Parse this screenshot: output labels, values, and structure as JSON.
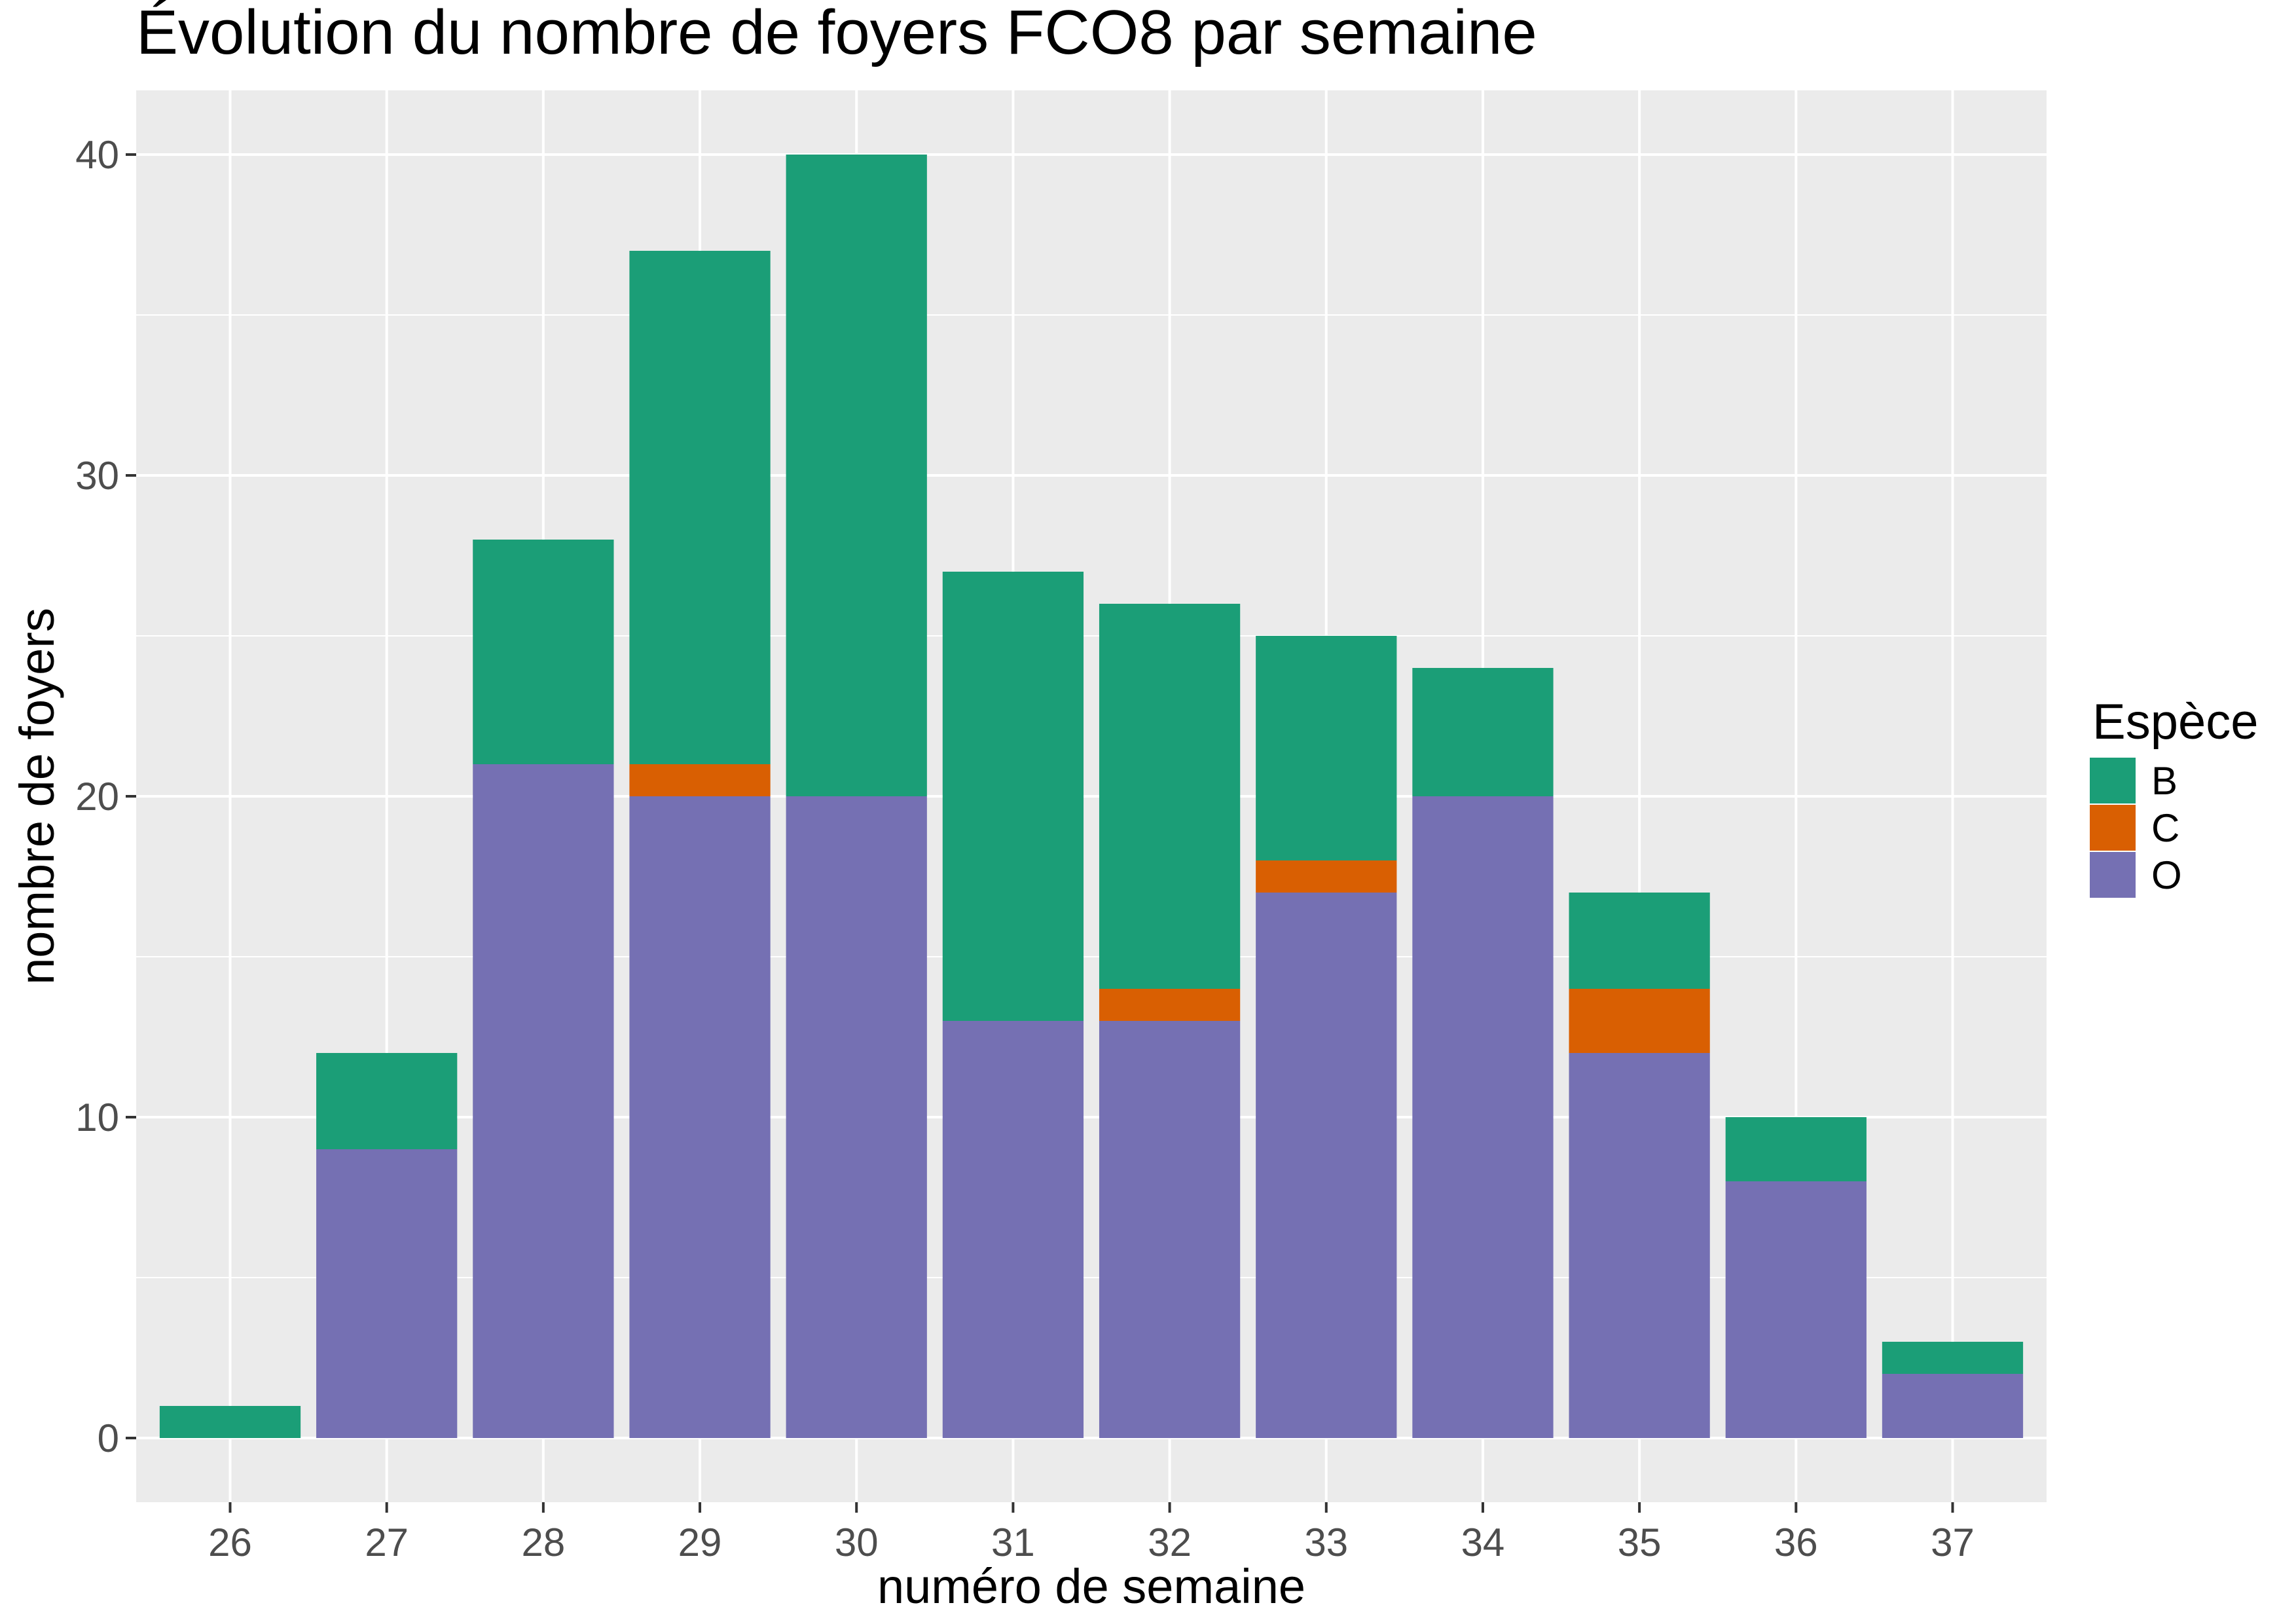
{
  "chart_data": {
    "type": "bar",
    "stacked": true,
    "title": "Évolution du nombre de foyers FCO8 par semaine",
    "xlabel": "numéro de semaine",
    "ylabel": "nombre de foyers",
    "categories": [
      "26",
      "27",
      "28",
      "29",
      "30",
      "31",
      "32",
      "33",
      "34",
      "35",
      "36",
      "37"
    ],
    "ylim": [
      -2,
      42
    ],
    "yticks": [
      0,
      10,
      20,
      30,
      40
    ],
    "grid": true,
    "legend": {
      "title": "Espèce",
      "position": "right"
    },
    "series": [
      {
        "name": "O",
        "color": "#7570b3",
        "values": [
          0,
          9,
          21,
          20,
          20,
          13,
          13,
          17,
          20,
          12,
          8,
          2
        ]
      },
      {
        "name": "C",
        "color": "#d95f02",
        "values": [
          0,
          0,
          0,
          1,
          0,
          0,
          1,
          1,
          0,
          2,
          0,
          0
        ]
      },
      {
        "name": "B",
        "color": "#1b9e77",
        "values": [
          1,
          3,
          7,
          16,
          20,
          14,
          12,
          7,
          4,
          3,
          2,
          1
        ]
      }
    ],
    "legend_order": [
      "B",
      "C",
      "O"
    ],
    "panel_color": "#ebebeb",
    "grid_color": "#ffffff"
  }
}
